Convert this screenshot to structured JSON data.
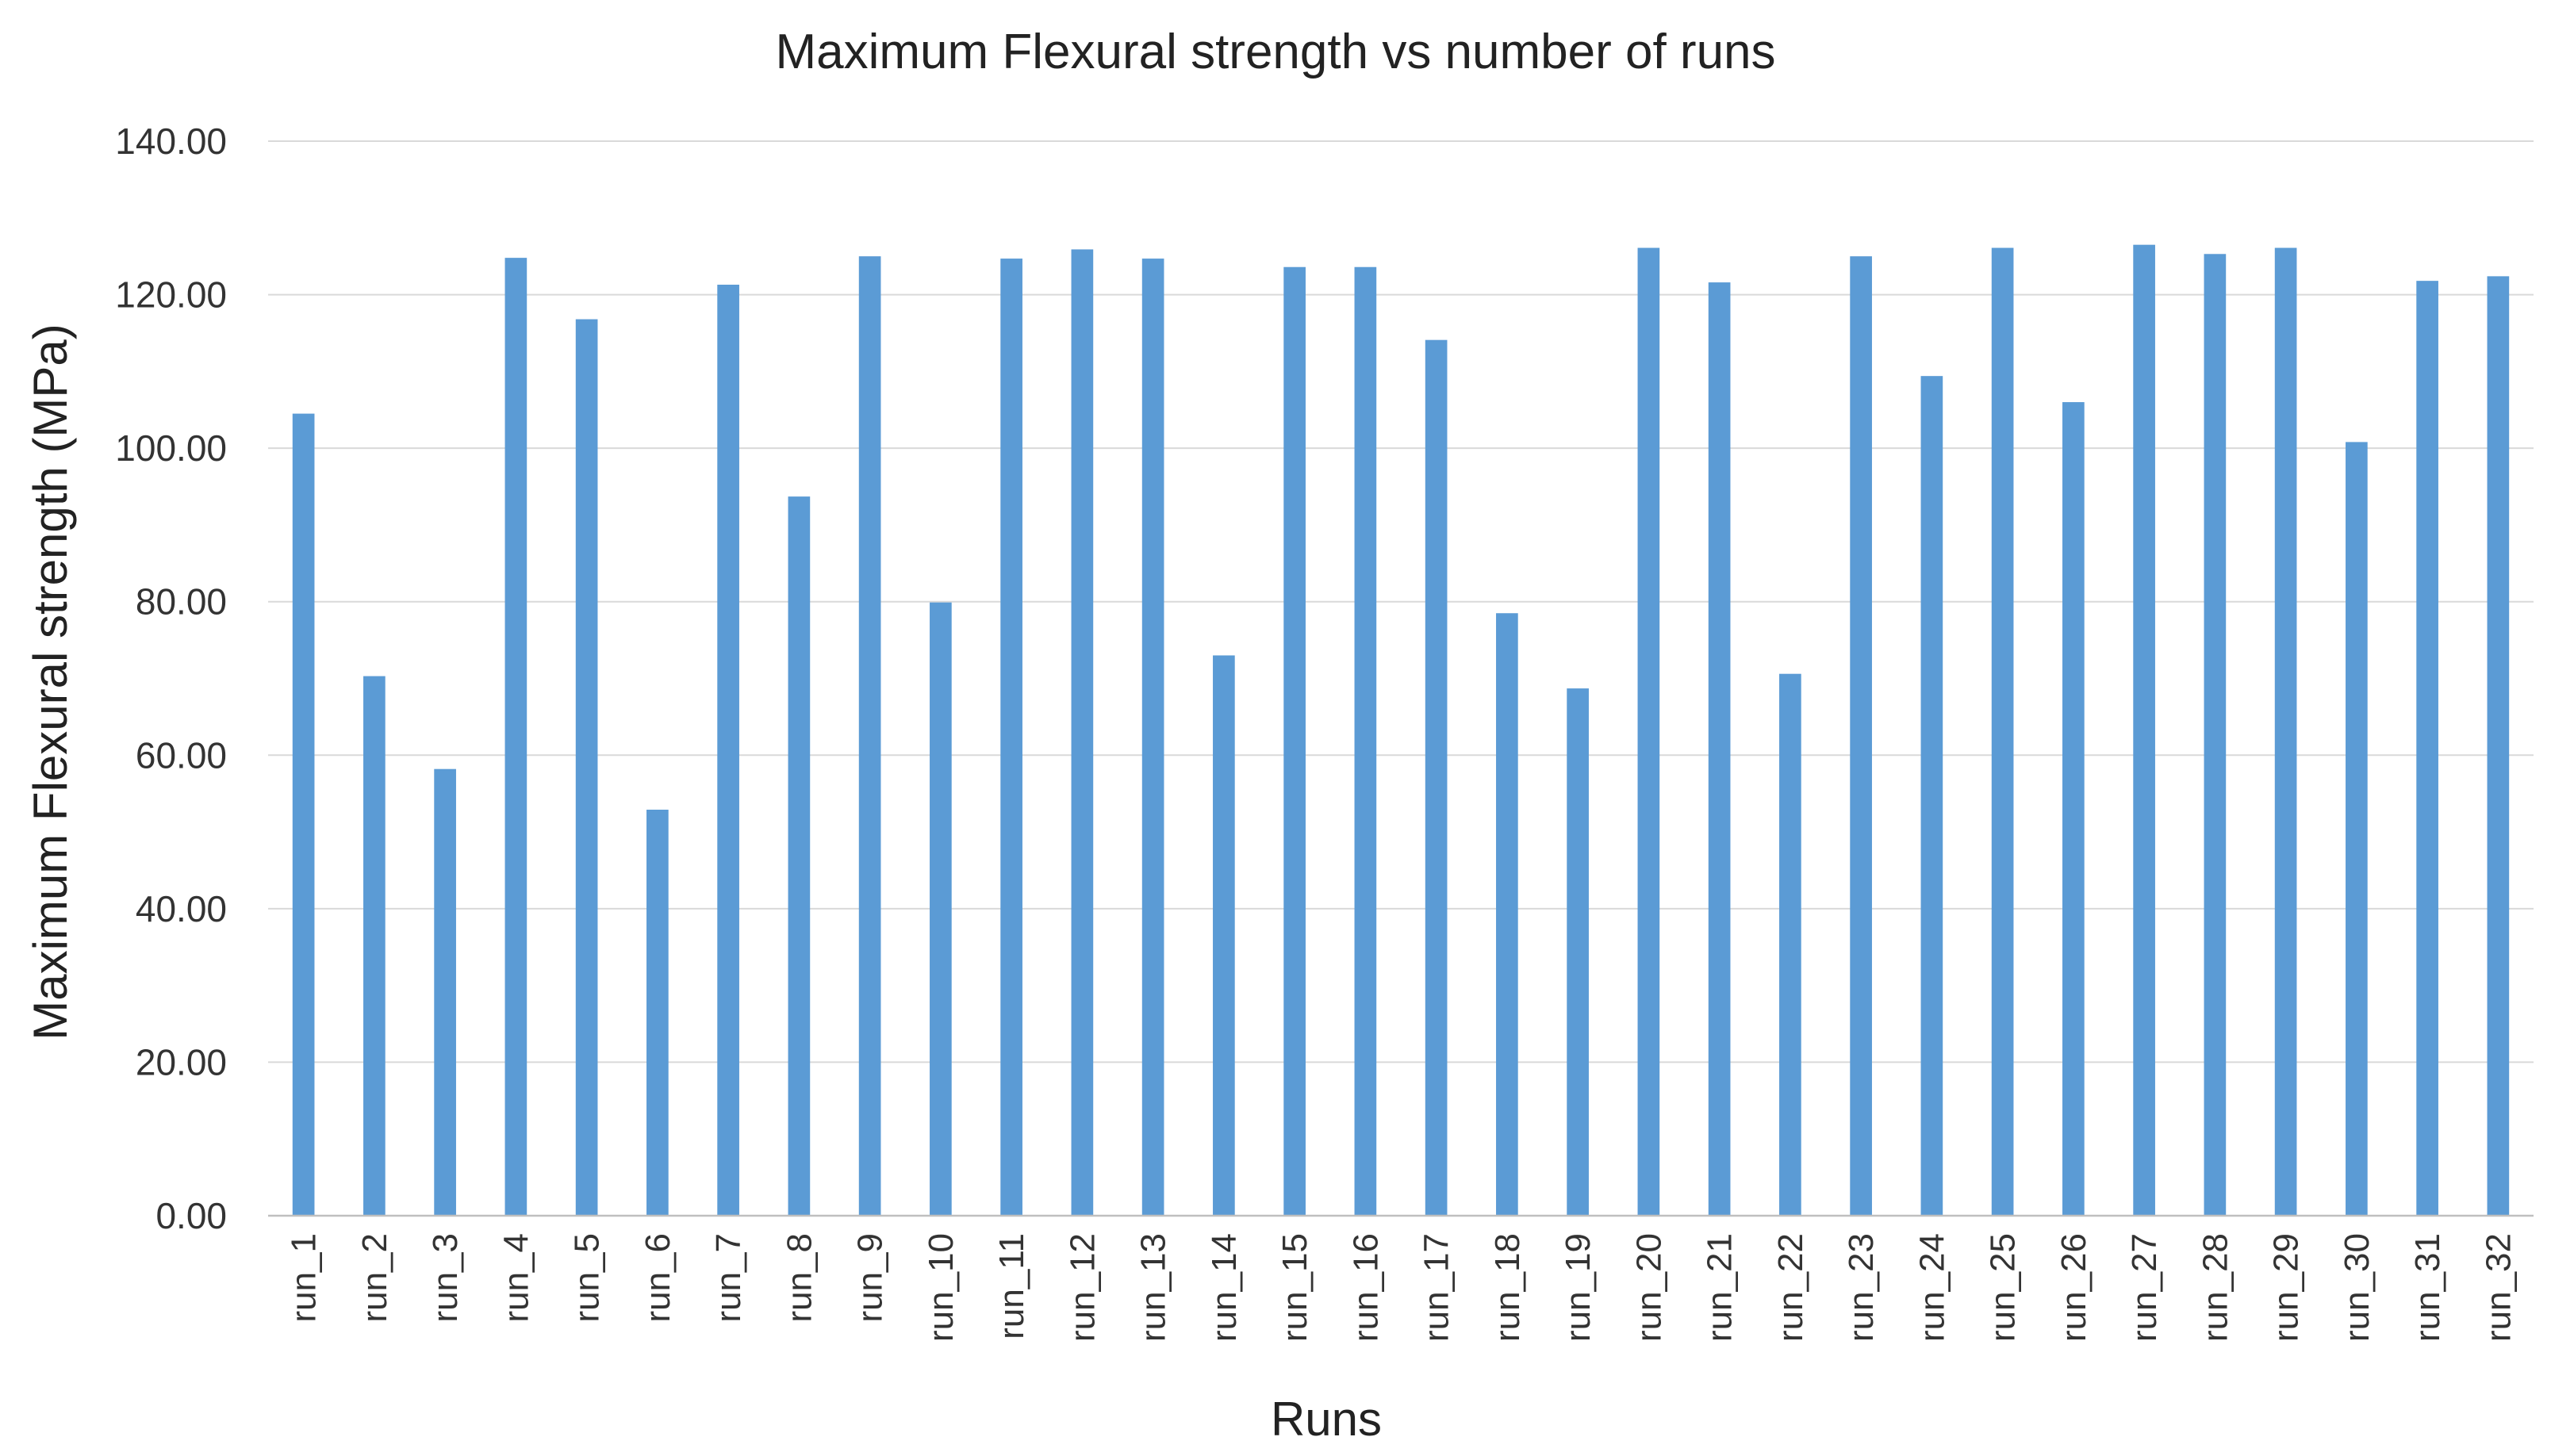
{
  "chart_data": {
    "type": "bar",
    "title": "Maximum Flexural strength vs number of runs",
    "xlabel": "Runs",
    "ylabel": "Maximum Flexural strength (MPa)",
    "ylim": [
      0,
      140
    ],
    "yticks": [
      "0.00",
      "20.00",
      "40.00",
      "60.00",
      "80.00",
      "100.00",
      "120.00",
      "140.00"
    ],
    "grid": true,
    "bar_color": "#5b9bd5",
    "categories": [
      "run_1",
      "run_2",
      "run_3",
      "run_4",
      "run_5",
      "run_6",
      "run_7",
      "run_8",
      "run_9",
      "run_10",
      "run_11",
      "run_12",
      "run_13",
      "run_14",
      "run_15",
      "run_16",
      "run_17",
      "run_18",
      "run_19",
      "run_20",
      "run_21",
      "run_22",
      "run_23",
      "run_24",
      "run_25",
      "run_26",
      "run_27",
      "run_28",
      "run_29",
      "run_30",
      "run_31",
      "run_32"
    ],
    "values": [
      104.5,
      70.3,
      58.2,
      124.8,
      116.8,
      52.9,
      121.3,
      93.7,
      125.0,
      79.9,
      124.7,
      125.9,
      124.7,
      73.0,
      123.6,
      123.6,
      114.1,
      78.5,
      68.7,
      126.1,
      121.6,
      70.6,
      125.0,
      109.4,
      126.1,
      106.0,
      126.5,
      125.3,
      126.1,
      100.8,
      121.8,
      122.4
    ]
  }
}
